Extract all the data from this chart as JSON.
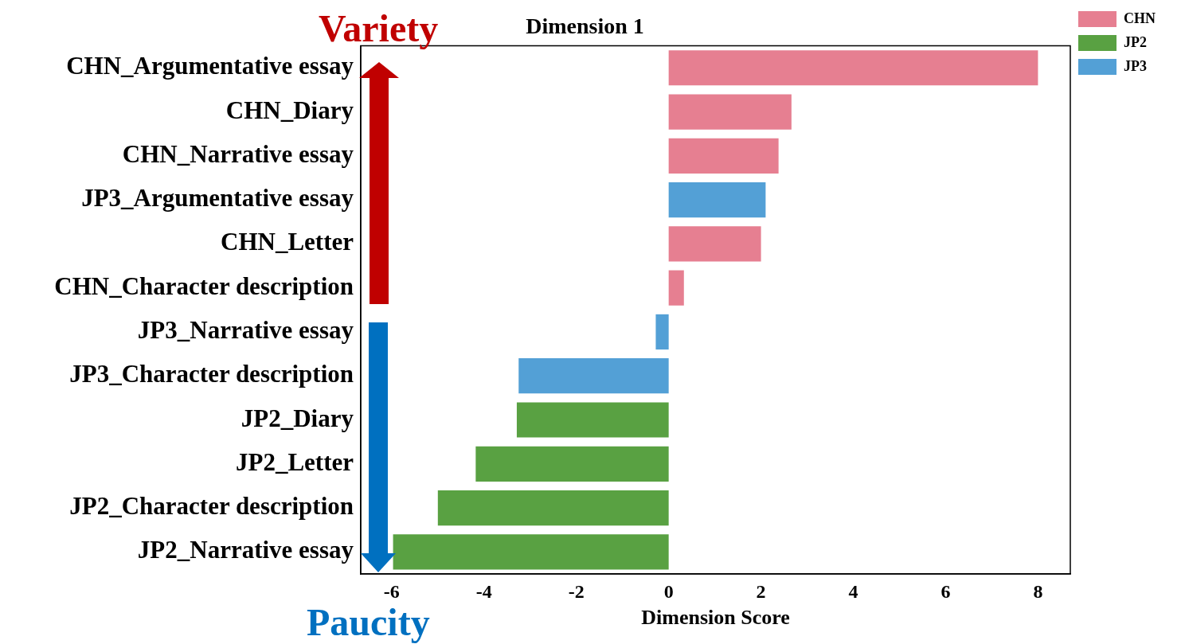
{
  "chart_data": {
    "type": "bar",
    "orientation": "horizontal",
    "title": "Dimension 1",
    "xlabel": "Dimension Score",
    "categories": [
      "CHN_Argumentative essay",
      "CHN_Diary",
      "CHN_Narrative essay",
      "JP3_Argumentative essay",
      "CHN_Letter",
      "CHN_Character description",
      "JP3_Narrative essay",
      "JP3_Character description",
      "JP2_Diary",
      "JP2_Letter",
      "JP2_Character description",
      "JP2_Narrative essay"
    ],
    "series": [
      {
        "name": "CHN",
        "color": "#e67f91",
        "values": [
          8.0,
          2.66,
          2.38,
          null,
          2.0,
          0.33,
          null,
          null,
          null,
          null,
          null,
          null
        ]
      },
      {
        "name": "JP2",
        "color": "#59a142",
        "values": [
          null,
          null,
          null,
          null,
          null,
          null,
          null,
          null,
          -3.29,
          -4.18,
          -5.0,
          -5.97
        ]
      },
      {
        "name": "JP3",
        "color": "#53a0d6",
        "values": [
          null,
          null,
          null,
          2.1,
          null,
          null,
          -0.28,
          -3.25,
          null,
          null,
          null,
          null
        ]
      }
    ],
    "xlim": [
      -6.67,
      8.7
    ],
    "xticks": [
      -6,
      -4,
      -2,
      0,
      2,
      4,
      6,
      8
    ],
    "grid": false,
    "legend": "top right",
    "annotations": [
      "Variety",
      "Paucity"
    ]
  }
}
